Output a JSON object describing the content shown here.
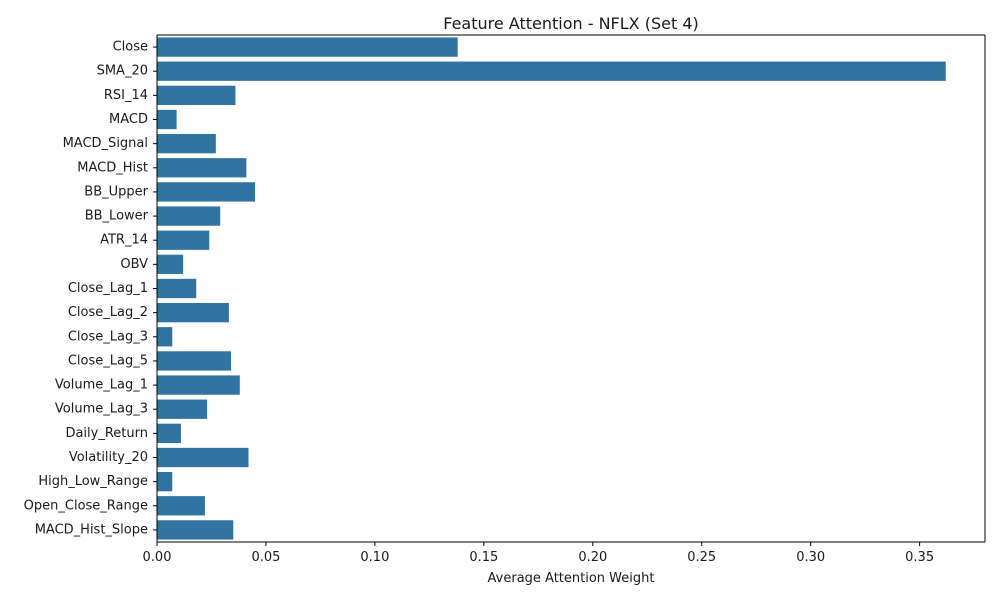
{
  "chart_data": {
    "type": "bar",
    "orientation": "horizontal",
    "title": "Feature Attention - NFLX (Set 4)",
    "xlabel": "Average Attention Weight",
    "ylabel": "",
    "xlim": [
      0,
      0.38
    ],
    "xticks": [
      0.0,
      0.05,
      0.1,
      0.15,
      0.2,
      0.25,
      0.3,
      0.35
    ],
    "xtick_labels": [
      "0.00",
      "0.05",
      "0.10",
      "0.15",
      "0.20",
      "0.25",
      "0.30",
      "0.35"
    ],
    "grid": false,
    "bar_color": "#3274a1",
    "categories": [
      "Close",
      "SMA_20",
      "RSI_14",
      "MACD",
      "MACD_Signal",
      "MACD_Hist",
      "BB_Upper",
      "BB_Lower",
      "ATR_14",
      "OBV",
      "Close_Lag_1",
      "Close_Lag_2",
      "Close_Lag_3",
      "Close_Lag_5",
      "Volume_Lag_1",
      "Volume_Lag_3",
      "Daily_Return",
      "Volatility_20",
      "High_Low_Range",
      "Open_Close_Range",
      "MACD_Hist_Slope"
    ],
    "values": [
      0.138,
      0.362,
      0.036,
      0.009,
      0.027,
      0.041,
      0.045,
      0.029,
      0.024,
      0.012,
      0.018,
      0.033,
      0.007,
      0.034,
      0.038,
      0.023,
      0.011,
      0.042,
      0.007,
      0.022,
      0.035
    ]
  }
}
